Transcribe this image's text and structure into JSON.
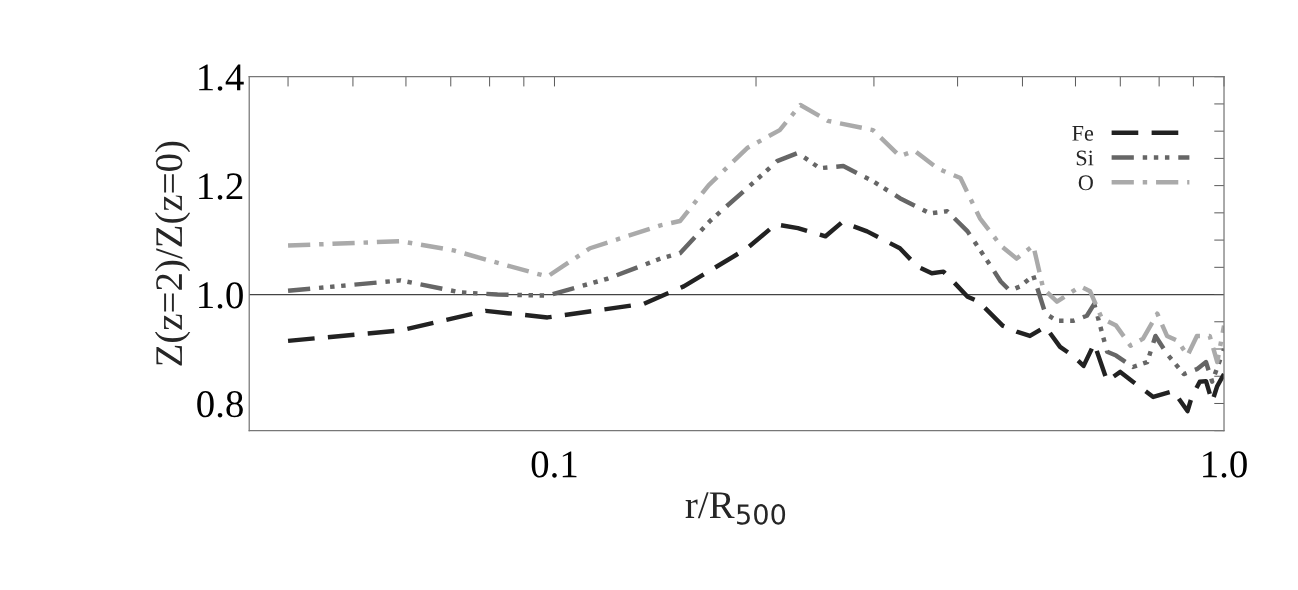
{
  "chart_data": {
    "type": "line",
    "xlabel": "r/R$_{500}$",
    "ylabel": "Z(z=2)/Z(z=0)",
    "log": "x",
    "xlim": [
      0.035,
      1.0
    ],
    "ylim": [
      0.75,
      1.4
    ],
    "xticks": [
      {
        "value": 0.04,
        "label": null
      },
      {
        "value": 0.05,
        "label": null
      },
      {
        "value": 0.06,
        "label": null
      },
      {
        "value": 0.07,
        "label": null
      },
      {
        "value": 0.08,
        "label": null
      },
      {
        "value": 0.09,
        "label": null
      },
      {
        "value": 0.1,
        "label": "0.1"
      },
      {
        "value": 0.2,
        "label": null
      },
      {
        "value": 0.3,
        "label": null
      },
      {
        "value": 0.4,
        "label": null
      },
      {
        "value": 0.5,
        "label": null
      },
      {
        "value": 0.6,
        "label": null
      },
      {
        "value": 0.7,
        "label": null
      },
      {
        "value": 0.8,
        "label": null
      },
      {
        "value": 0.9,
        "label": null
      },
      {
        "value": 1.0,
        "label": "1.0"
      }
    ],
    "yticks": [
      {
        "value": 0.75,
        "label": null
      },
      {
        "value": 0.8,
        "label": "0.8"
      },
      {
        "value": 0.85,
        "label": null
      },
      {
        "value": 0.9,
        "label": null
      },
      {
        "value": 0.95,
        "label": null
      },
      {
        "value": 1.0,
        "label": "1.0"
      },
      {
        "value": 1.05,
        "label": null
      },
      {
        "value": 1.1,
        "label": null
      },
      {
        "value": 1.15,
        "label": null
      },
      {
        "value": 1.2,
        "label": "1.2"
      },
      {
        "value": 1.25,
        "label": null
      },
      {
        "value": 1.3,
        "label": null
      },
      {
        "value": 1.35,
        "label": null
      },
      {
        "value": 1.4,
        "label": "1.4"
      }
    ],
    "grid": false,
    "legend": "top right",
    "ref_lines": [
      {
        "axis": "y",
        "value": 1.0,
        "color": "#444444",
        "line_style": "solid"
      }
    ],
    "series": [
      {
        "name": "Fe",
        "color": "#222222",
        "line_style": "dashed",
        "x": [
          0.04,
          0.0589,
          0.0789,
          0.0976,
          0.136,
          0.156,
          0.194,
          0.214,
          0.231,
          0.254,
          0.269,
          0.293,
          0.328,
          0.348,
          0.366,
          0.381,
          0.394,
          0.414,
          0.43,
          0.467,
          0.49,
          0.513,
          0.541,
          0.569,
          0.594,
          0.617,
          0.64,
          0.669,
          0.7,
          0.731,
          0.784,
          0.84,
          0.882,
          0.895,
          0.92,
          0.94,
          0.96,
          0.977,
          1.0
        ],
        "values": [
          0.915,
          0.934,
          0.97,
          0.958,
          0.983,
          1.015,
          1.085,
          1.129,
          1.122,
          1.107,
          1.133,
          1.116,
          1.085,
          1.052,
          1.039,
          1.042,
          1.024,
          0.996,
          0.987,
          0.943,
          0.932,
          0.924,
          0.941,
          0.904,
          0.888,
          0.869,
          0.91,
          0.841,
          0.858,
          0.84,
          0.812,
          0.823,
          0.786,
          0.812,
          0.84,
          0.841,
          0.803,
          0.832,
          0.854
        ]
      },
      {
        "name": "Si",
        "color": "#666666",
        "line_style": "dashdotdot",
        "x": [
          0.04,
          0.0589,
          0.0724,
          0.0822,
          0.0976,
          0.12,
          0.144,
          0.154,
          0.171,
          0.198,
          0.215,
          0.231,
          0.249,
          0.27,
          0.299,
          0.328,
          0.364,
          0.386,
          0.414,
          0.448,
          0.464,
          0.479,
          0.496,
          0.519,
          0.541,
          0.563,
          0.596,
          0.624,
          0.64,
          0.669,
          0.69,
          0.731,
          0.768,
          0.79,
          0.822,
          0.871,
          0.911,
          0.94,
          0.96,
          1.0
        ],
        "values": [
          1.007,
          1.026,
          1.004,
          1.0,
          0.998,
          1.029,
          1.066,
          1.076,
          1.136,
          1.205,
          1.245,
          1.26,
          1.232,
          1.236,
          1.208,
          1.177,
          1.149,
          1.153,
          1.116,
          1.053,
          1.024,
          1.007,
          1.015,
          1.035,
          0.965,
          0.952,
          0.952,
          0.961,
          0.983,
          0.895,
          0.888,
          0.867,
          0.876,
          0.924,
          0.891,
          0.854,
          0.863,
          0.876,
          0.84,
          0.9
        ]
      },
      {
        "name": "O",
        "color": "#aaaaaa",
        "line_style": "dashdot",
        "x": [
          0.04,
          0.0589,
          0.0707,
          0.0851,
          0.0976,
          0.113,
          0.144,
          0.154,
          0.17,
          0.194,
          0.217,
          0.233,
          0.256,
          0.299,
          0.328,
          0.345,
          0.373,
          0.381,
          0.404,
          0.432,
          0.464,
          0.49,
          0.519,
          0.537,
          0.563,
          0.61,
          0.631,
          0.657,
          0.69,
          0.725,
          0.757,
          0.795,
          0.822,
          0.853,
          0.882,
          0.911,
          0.952,
          0.977,
          1.0
        ],
        "values": [
          1.09,
          1.098,
          1.081,
          1.053,
          1.033,
          1.085,
          1.127,
          1.135,
          1.201,
          1.269,
          1.302,
          1.348,
          1.319,
          1.302,
          1.254,
          1.264,
          1.232,
          1.227,
          1.214,
          1.14,
          1.09,
          1.066,
          1.09,
          1.011,
          0.987,
          1.015,
          1.006,
          0.956,
          0.943,
          0.906,
          0.919,
          0.965,
          0.924,
          0.915,
          0.888,
          0.924,
          0.924,
          0.876,
          0.943
        ]
      }
    ]
  }
}
